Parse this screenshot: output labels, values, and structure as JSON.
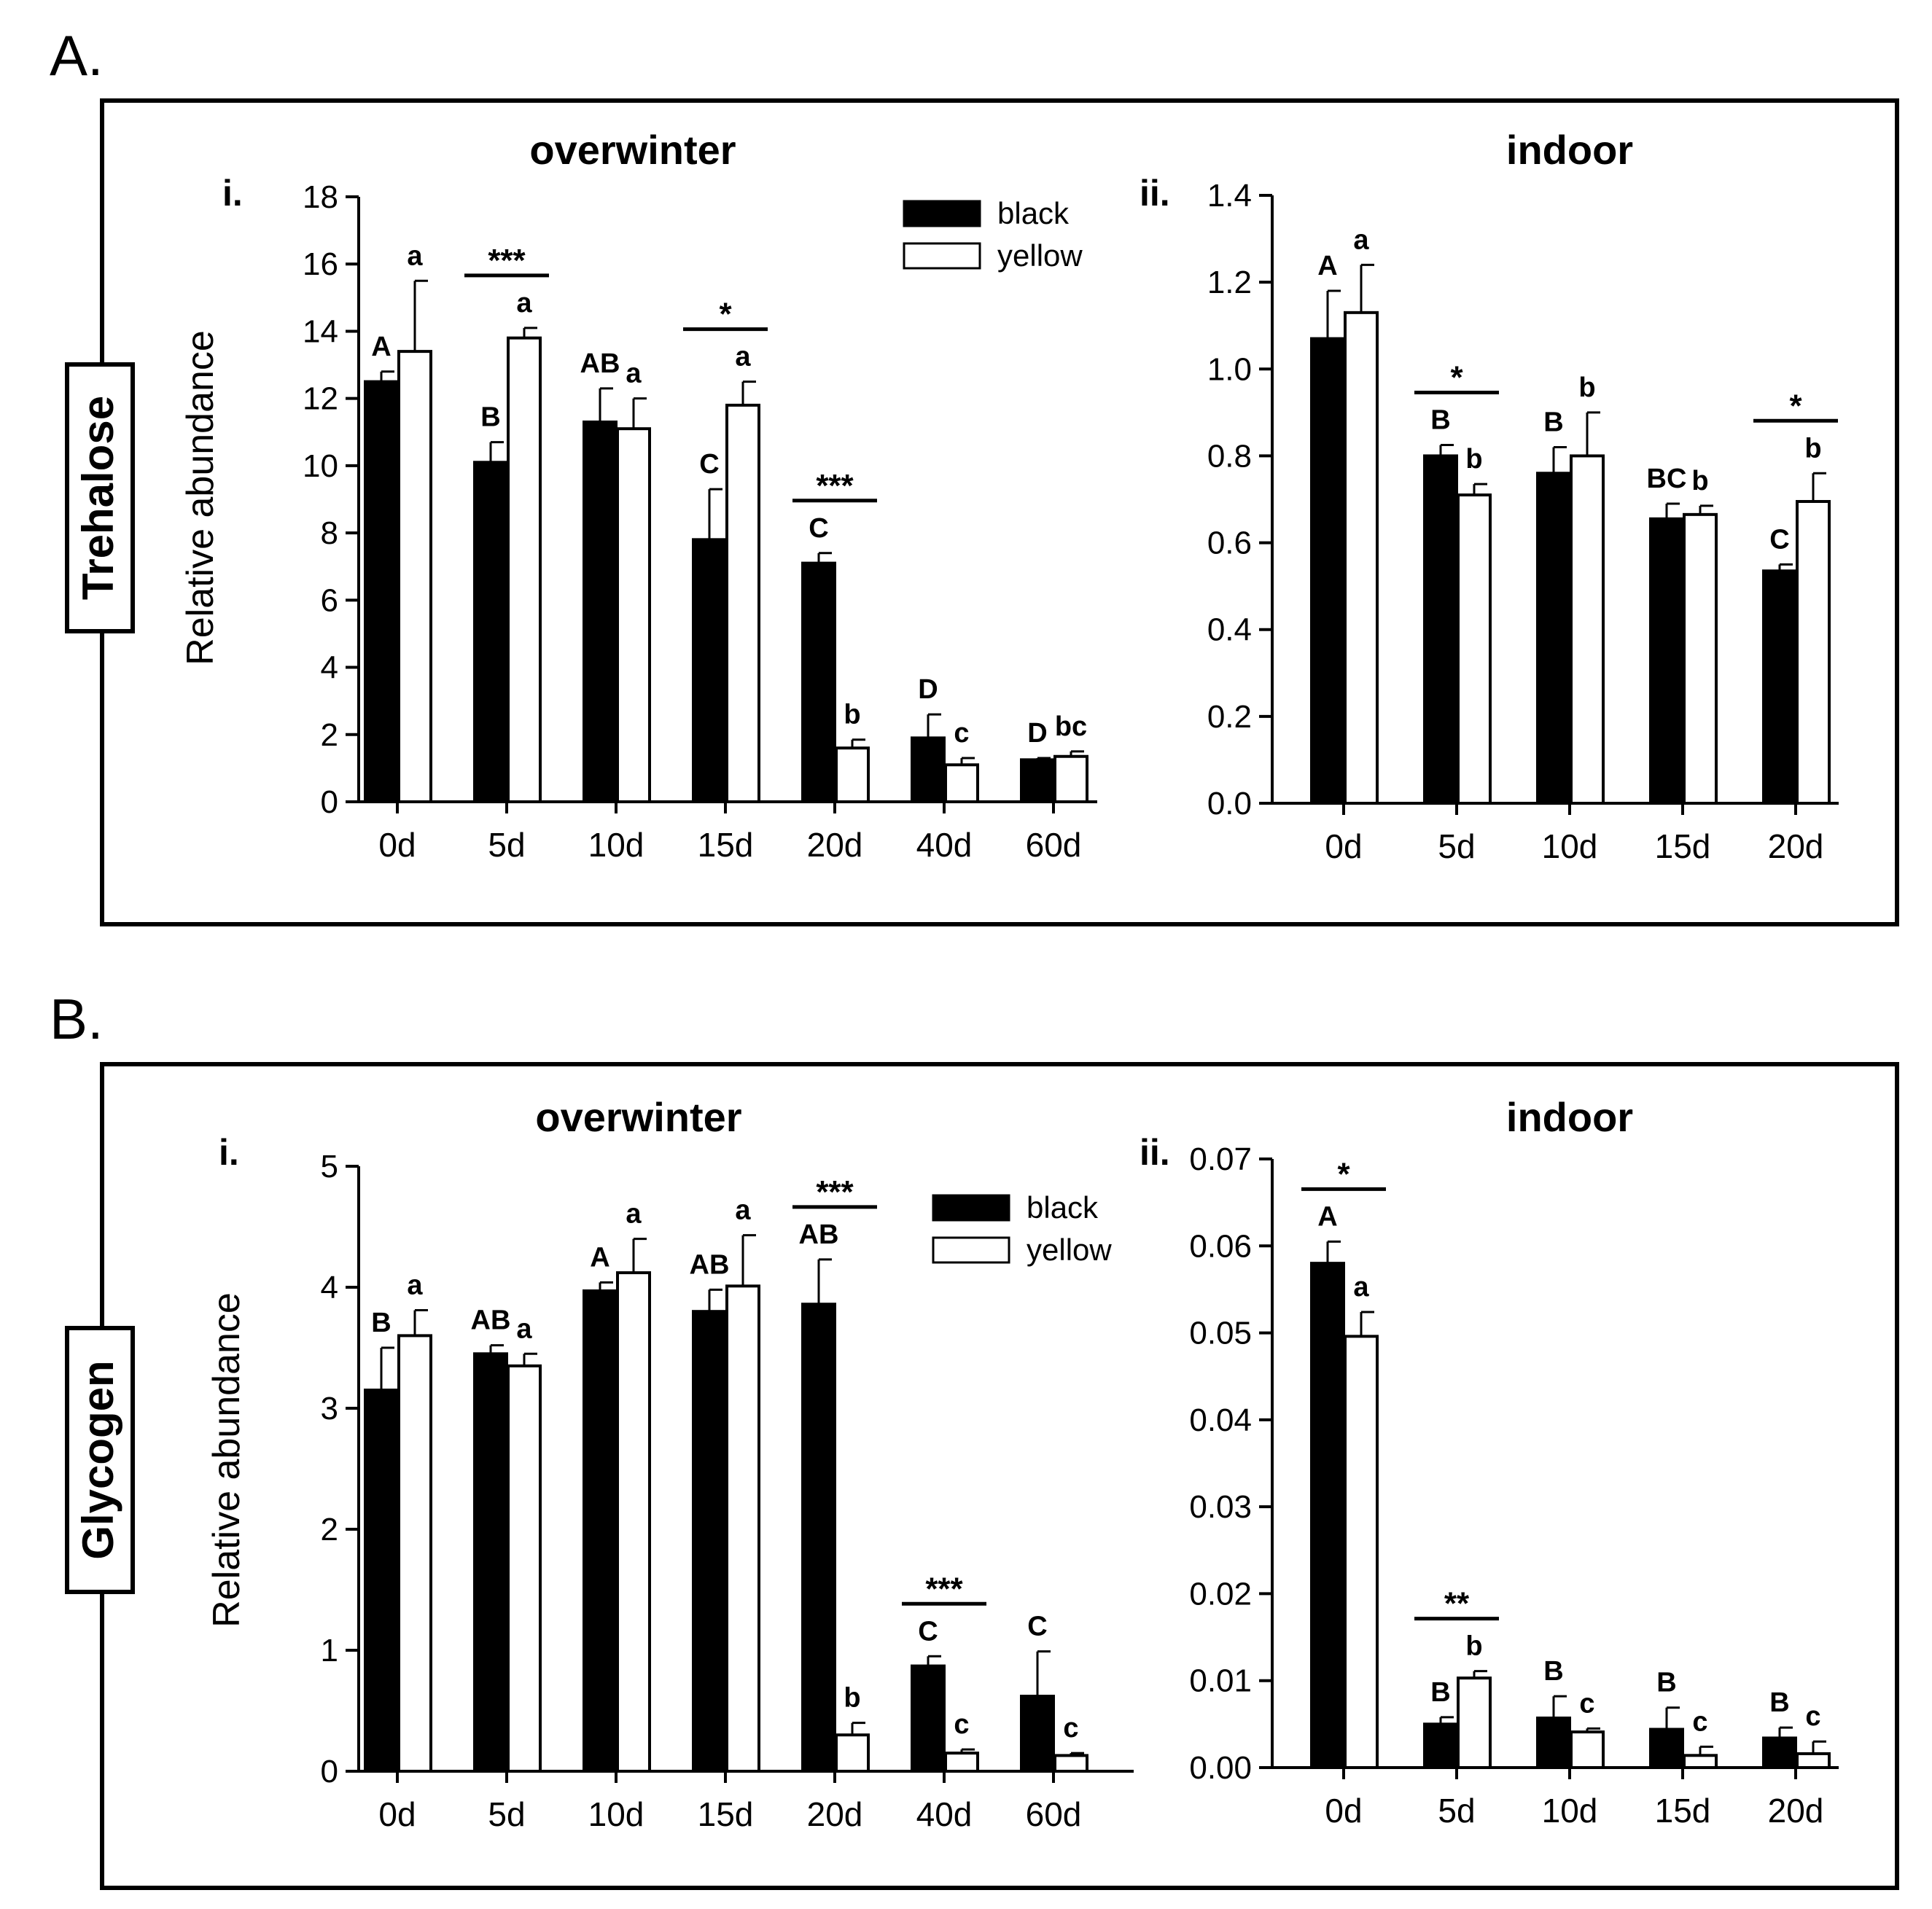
{
  "figure": {
    "panels": [
      {
        "id": "A",
        "label": "A.",
        "metabolite": "Trehalose"
      },
      {
        "id": "B",
        "label": "B.",
        "metabolite": "Glycogen"
      }
    ]
  },
  "colors": {
    "black": "#000000",
    "yellow": "#ffffff",
    "axis": "#000000"
  },
  "chart_data": [
    {
      "panel": "A",
      "sub_label": "i.",
      "type": "bar",
      "title": "overwinter",
      "ylabel": "Relative abundance",
      "xlabel": "",
      "categories": [
        "0d",
        "5d",
        "10d",
        "15d",
        "20d",
        "40d",
        "60d"
      ],
      "ylim": [
        0,
        18
      ],
      "yticks": [
        "0",
        "2",
        "4",
        "6",
        "8",
        "10",
        "12",
        "14",
        "16",
        "18"
      ],
      "legend": {
        "position": "top-right",
        "entries": [
          "black",
          "yellow"
        ]
      },
      "series": [
        {
          "name": "black",
          "values": [
            12.5,
            10.1,
            11.3,
            7.8,
            7.1,
            1.9,
            1.25
          ],
          "errors": [
            0.3,
            0.6,
            1.0,
            1.5,
            0.3,
            0.7,
            0.05
          ],
          "letters": [
            "A",
            "B",
            "AB",
            "C",
            "C",
            "D",
            "D"
          ]
        },
        {
          "name": "yellow",
          "values": [
            13.4,
            13.8,
            11.1,
            11.8,
            1.6,
            1.1,
            1.35
          ],
          "errors": [
            2.1,
            0.3,
            0.9,
            0.7,
            0.25,
            0.2,
            0.15
          ],
          "letters": [
            "a",
            "a",
            "a",
            "a",
            "b",
            "c",
            "bc"
          ]
        }
      ],
      "significance": [
        {
          "category": "5d",
          "label": "***"
        },
        {
          "category": "15d",
          "label": "*"
        },
        {
          "category": "20d",
          "label": "***"
        }
      ]
    },
    {
      "panel": "A",
      "sub_label": "ii.",
      "type": "bar",
      "title": "indoor",
      "ylabel": "",
      "xlabel": "",
      "categories": [
        "0d",
        "5d",
        "10d",
        "15d",
        "20d"
      ],
      "ylim": [
        0,
        1.4
      ],
      "yticks": [
        "0.0",
        "0.2",
        "0.4",
        "0.6",
        "0.8",
        "1.0",
        "1.2",
        "1.4"
      ],
      "series": [
        {
          "name": "black",
          "values": [
            1.07,
            0.8,
            0.76,
            0.655,
            0.535
          ],
          "errors": [
            0.11,
            0.025,
            0.06,
            0.035,
            0.015
          ],
          "letters": [
            "A",
            "B",
            "B",
            "BC",
            "C"
          ]
        },
        {
          "name": "yellow",
          "values": [
            1.13,
            0.71,
            0.8,
            0.665,
            0.695
          ],
          "errors": [
            0.11,
            0.025,
            0.1,
            0.02,
            0.065
          ],
          "letters": [
            "a",
            "b",
            "b",
            "b",
            "b"
          ]
        }
      ],
      "significance": [
        {
          "category": "5d",
          "label": "*"
        },
        {
          "category": "20d",
          "label": "*"
        }
      ]
    },
    {
      "panel": "B",
      "sub_label": "i.",
      "type": "bar",
      "title": "overwinter",
      "ylabel": "Relative abundance",
      "xlabel": "",
      "categories": [
        "0d",
        "5d",
        "10d",
        "15d",
        "20d",
        "40d",
        "60d"
      ],
      "ylim": [
        0,
        5
      ],
      "yticks": [
        "0",
        "1",
        "2",
        "3",
        "4",
        "5"
      ],
      "legend": {
        "position": "top-right",
        "entries": [
          "black",
          "yellow"
        ]
      },
      "series": [
        {
          "name": "black",
          "values": [
            3.15,
            3.45,
            3.97,
            3.8,
            3.86,
            0.87,
            0.62
          ],
          "errors": [
            0.35,
            0.07,
            0.07,
            0.18,
            0.37,
            0.08,
            0.37
          ],
          "letters": [
            "B",
            "AB",
            "A",
            "AB",
            "AB",
            "C",
            "C"
          ]
        },
        {
          "name": "yellow",
          "values": [
            3.6,
            3.35,
            4.12,
            4.01,
            0.3,
            0.15,
            0.13
          ],
          "errors": [
            0.21,
            0.1,
            0.28,
            0.42,
            0.1,
            0.03,
            0.02
          ],
          "letters": [
            "a",
            "a",
            "a",
            "a",
            "b",
            "c",
            "c"
          ]
        }
      ],
      "significance": [
        {
          "category": "20d",
          "label": "***"
        },
        {
          "category": "40d",
          "label": "***"
        }
      ]
    },
    {
      "panel": "B",
      "sub_label": "ii.",
      "type": "bar",
      "title": "indoor",
      "ylabel": "",
      "xlabel": "",
      "categories": [
        "0d",
        "5d",
        "10d",
        "15d",
        "20d"
      ],
      "ylim": [
        0,
        0.07
      ],
      "yticks": [
        "0.00",
        "0.01",
        "0.02",
        "0.03",
        "0.04",
        "0.05",
        "0.06",
        "0.07"
      ],
      "series": [
        {
          "name": "black",
          "values": [
            0.058,
            0.005,
            0.0057,
            0.0044,
            0.0034
          ],
          "errors": [
            0.0025,
            0.0008,
            0.0025,
            0.0025,
            0.0012
          ],
          "letters": [
            "A",
            "B",
            "B",
            "B",
            "B"
          ]
        },
        {
          "name": "yellow",
          "values": [
            0.0496,
            0.0103,
            0.0041,
            0.0014,
            0.0016
          ],
          "errors": [
            0.0028,
            0.0008,
            0.0004,
            0.001,
            0.0014
          ],
          "letters": [
            "a",
            "b",
            "c",
            "c",
            "c"
          ]
        }
      ],
      "significance": [
        {
          "category": "0d",
          "label": "*"
        },
        {
          "category": "5d",
          "label": "**"
        }
      ]
    }
  ]
}
